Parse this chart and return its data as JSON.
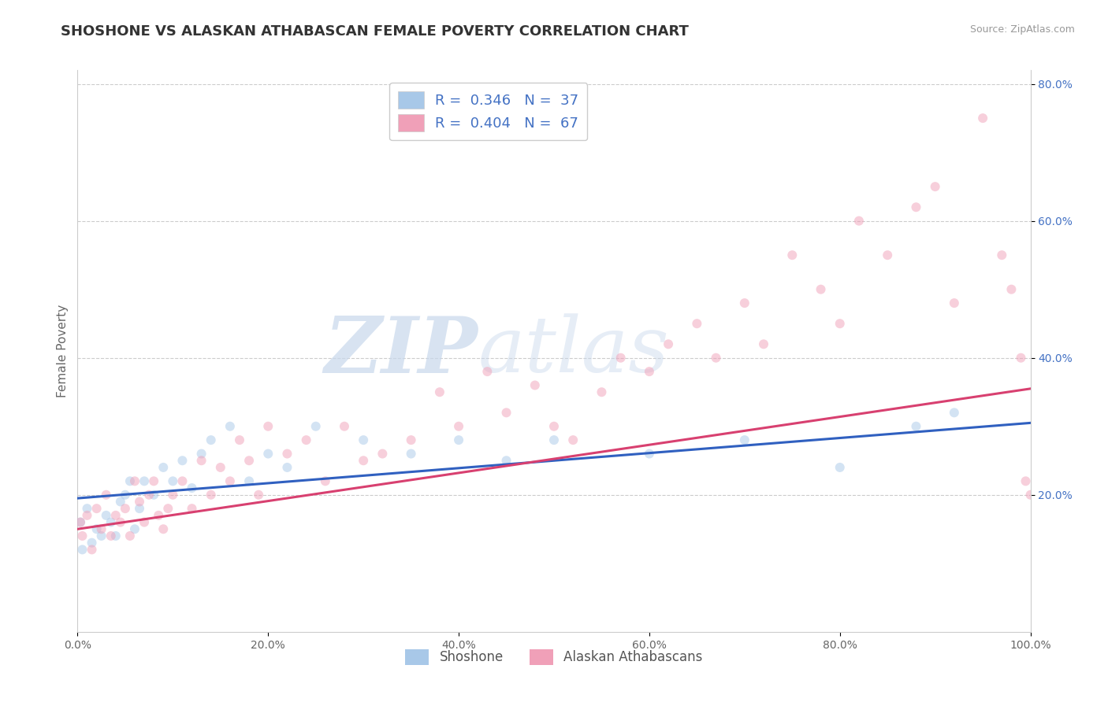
{
  "title": "SHOSHONE VS ALASKAN ATHABASCAN FEMALE POVERTY CORRELATION CHART",
  "source": "Source: ZipAtlas.com",
  "ylabel": "Female Poverty",
  "watermark_zip": "ZIP",
  "watermark_atlas": "atlas",
  "series": [
    {
      "name": "Shoshone",
      "color": "#a8c8e8",
      "edge_color": "#a8c8e8",
      "line_color": "#3060c0",
      "R": 0.346,
      "N": 37,
      "x": [
        0.3,
        0.5,
        1.0,
        1.5,
        2.0,
        2.5,
        3.0,
        3.5,
        4.0,
        4.5,
        5.0,
        5.5,
        6.0,
        6.5,
        7.0,
        8.0,
        9.0,
        10.0,
        11.0,
        12.0,
        13.0,
        14.0,
        16.0,
        18.0,
        20.0,
        22.0,
        25.0,
        30.0,
        35.0,
        40.0,
        45.0,
        50.0,
        60.0,
        70.0,
        80.0,
        88.0,
        92.0
      ],
      "y": [
        16.0,
        12.0,
        18.0,
        13.0,
        15.0,
        14.0,
        17.0,
        16.0,
        14.0,
        19.0,
        20.0,
        22.0,
        15.0,
        18.0,
        22.0,
        20.0,
        24.0,
        22.0,
        25.0,
        21.0,
        26.0,
        28.0,
        30.0,
        22.0,
        26.0,
        24.0,
        30.0,
        28.0,
        26.0,
        28.0,
        25.0,
        28.0,
        26.0,
        28.0,
        24.0,
        30.0,
        32.0
      ]
    },
    {
      "name": "Alaskan Athabascans",
      "color": "#f0a0b8",
      "edge_color": "#f0a0b8",
      "line_color": "#d84070",
      "R": 0.404,
      "N": 67,
      "x": [
        0.3,
        0.5,
        1.0,
        1.5,
        2.0,
        2.5,
        3.0,
        3.5,
        4.0,
        4.5,
        5.0,
        5.5,
        6.0,
        6.5,
        7.0,
        7.5,
        8.0,
        8.5,
        9.0,
        9.5,
        10.0,
        11.0,
        12.0,
        13.0,
        14.0,
        15.0,
        16.0,
        17.0,
        18.0,
        19.0,
        20.0,
        22.0,
        24.0,
        26.0,
        28.0,
        30.0,
        32.0,
        35.0,
        38.0,
        40.0,
        43.0,
        45.0,
        48.0,
        50.0,
        52.0,
        55.0,
        57.0,
        60.0,
        62.0,
        65.0,
        67.0,
        70.0,
        72.0,
        75.0,
        78.0,
        80.0,
        82.0,
        85.0,
        88.0,
        90.0,
        92.0,
        95.0,
        97.0,
        98.0,
        99.0,
        99.5,
        100.0
      ],
      "y": [
        16.0,
        14.0,
        17.0,
        12.0,
        18.0,
        15.0,
        20.0,
        14.0,
        17.0,
        16.0,
        18.0,
        14.0,
        22.0,
        19.0,
        16.0,
        20.0,
        22.0,
        17.0,
        15.0,
        18.0,
        20.0,
        22.0,
        18.0,
        25.0,
        20.0,
        24.0,
        22.0,
        28.0,
        25.0,
        20.0,
        30.0,
        26.0,
        28.0,
        22.0,
        30.0,
        25.0,
        26.0,
        28.0,
        35.0,
        30.0,
        38.0,
        32.0,
        36.0,
        30.0,
        28.0,
        35.0,
        40.0,
        38.0,
        42.0,
        45.0,
        40.0,
        48.0,
        42.0,
        55.0,
        50.0,
        45.0,
        60.0,
        55.0,
        62.0,
        65.0,
        48.0,
        75.0,
        55.0,
        50.0,
        40.0,
        22.0,
        20.0
      ]
    }
  ],
  "shoshone_trend": [
    19.5,
    30.5
  ],
  "alaska_trend": [
    15.0,
    35.5
  ],
  "xlim": [
    0,
    100
  ],
  "ylim": [
    0,
    82
  ],
  "xticks": [
    0,
    20,
    40,
    60,
    80,
    100
  ],
  "xticklabels": [
    "0.0%",
    "20.0%",
    "40.0%",
    "60.0%",
    "80.0%",
    "100.0%"
  ],
  "yticks_right": [
    20,
    40,
    60,
    80
  ],
  "yticklabels_right": [
    "20.0%",
    "40.0%",
    "60.0%",
    "80.0%"
  ],
  "grid_color": "#cccccc",
  "bg_color": "#ffffff",
  "title_fontsize": 13,
  "axis_label_fontsize": 11,
  "tick_fontsize": 10,
  "marker_size": 75,
  "marker_alpha": 0.5,
  "line_width": 2.2
}
